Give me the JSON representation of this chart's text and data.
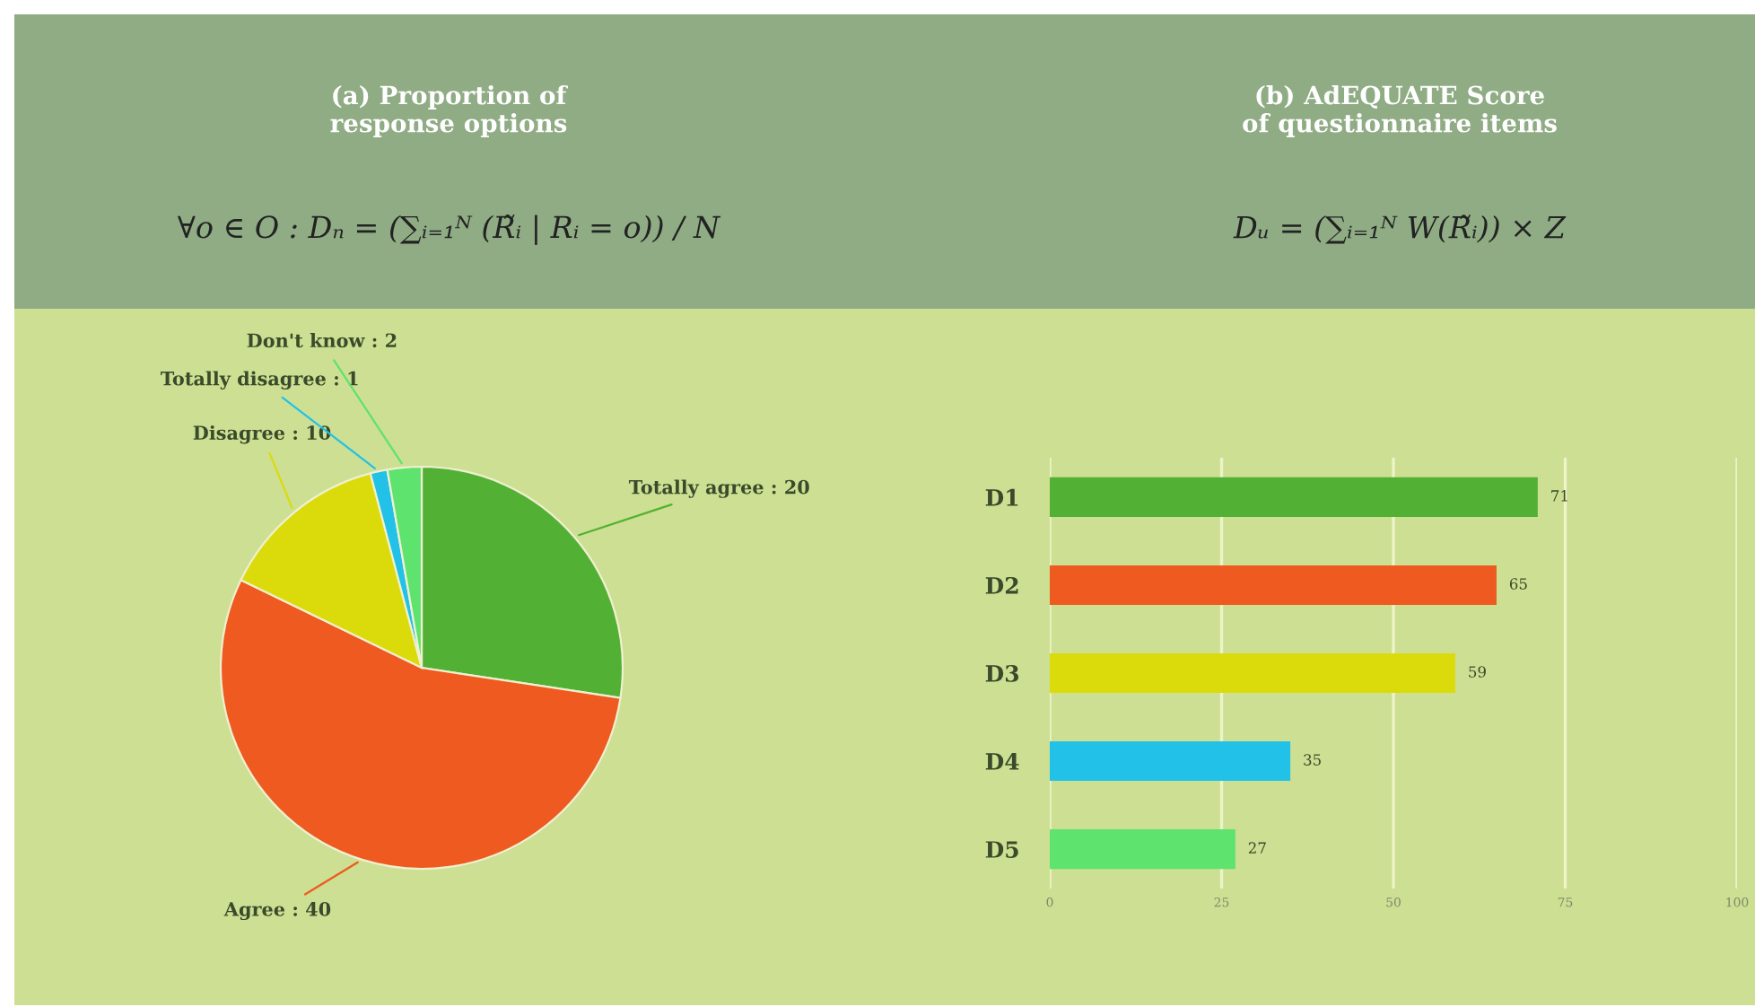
{
  "chart_data": [
    {
      "type": "pie",
      "title": "(a) Proportion of\nresponse options",
      "subtitle": "∀o ∈ O : Dₙ = (∑ᵢ₌₁ᴺ (R̃ᵢ | Rᵢ = o)) / N",
      "categories": [
        "Totally agree : 20",
        "Agree : 40",
        "Disagree : 10",
        "Totally disagree : 1",
        "Don't know : 2"
      ],
      "values": [
        20,
        40,
        10,
        1,
        2
      ],
      "colors": [
        "#52b135",
        "#ee5a1f",
        "#dbdb0c",
        "#22c2e8",
        "#5de36e"
      ],
      "legend": false
    },
    {
      "type": "bar",
      "orientation": "horizontal",
      "title": "(b) AdEQUATE Score\nof questionnaire items",
      "subtitle": "Dᵤ = (∑ᵢ₌₁ᴺ W(R̃ᵢ)) × Z",
      "categories": [
        "D1",
        "D2",
        "D3",
        "D4",
        "D5"
      ],
      "values": [
        71,
        65,
        59,
        35,
        27
      ],
      "colors": [
        "#52b135",
        "#ee5a1f",
        "#dbdb0c",
        "#22c2e8",
        "#5de36e"
      ],
      "xlim": [
        0,
        100
      ],
      "xticks": [
        0,
        25,
        50,
        75,
        100
      ],
      "grid": "x",
      "data_labels": true,
      "legend": false
    }
  ]
}
